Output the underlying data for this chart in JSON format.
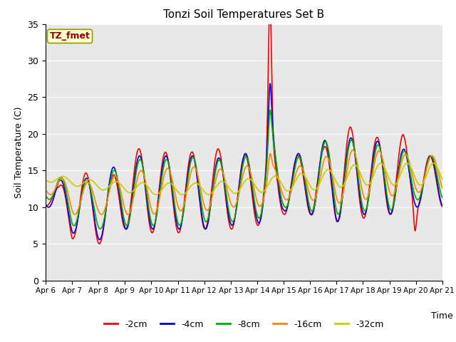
{
  "title": "Tonzi Soil Temperatures Set B",
  "xlabel": "Time",
  "ylabel": "Soil Temperature (C)",
  "annotation_text": "TZ_fmet",
  "annotation_color": "#8B0000",
  "annotation_bg": "#FFFFCC",
  "annotation_border": "#999900",
  "ylim": [
    0,
    35
  ],
  "yticks": [
    0,
    5,
    10,
    15,
    20,
    25,
    30,
    35
  ],
  "series_colors": [
    "#FF0000",
    "#0000CC",
    "#00AA00",
    "#FF8800",
    "#CCCC00"
  ],
  "series_labels": [
    "-2cm",
    "-4cm",
    "-8cm",
    "-16cm",
    "-32cm"
  ],
  "bg_color": "#E8E8E8",
  "grid_color": "#FFFFFF",
  "x_ticks": [
    6,
    7,
    8,
    9,
    10,
    11,
    12,
    13,
    14,
    15,
    16,
    17,
    18,
    19,
    20,
    21
  ],
  "x_tick_labels": [
    "Apr 6",
    "Apr 7",
    "Apr 8",
    "Apr 9",
    "Apr 10",
    "Apr 11",
    "Apr 12",
    "Apr 13",
    "Apr 14",
    "Apr 15",
    "Apr 16",
    "Apr 17",
    "Apr 18",
    "Apr 19",
    "Apr 20",
    "Apr 21"
  ]
}
